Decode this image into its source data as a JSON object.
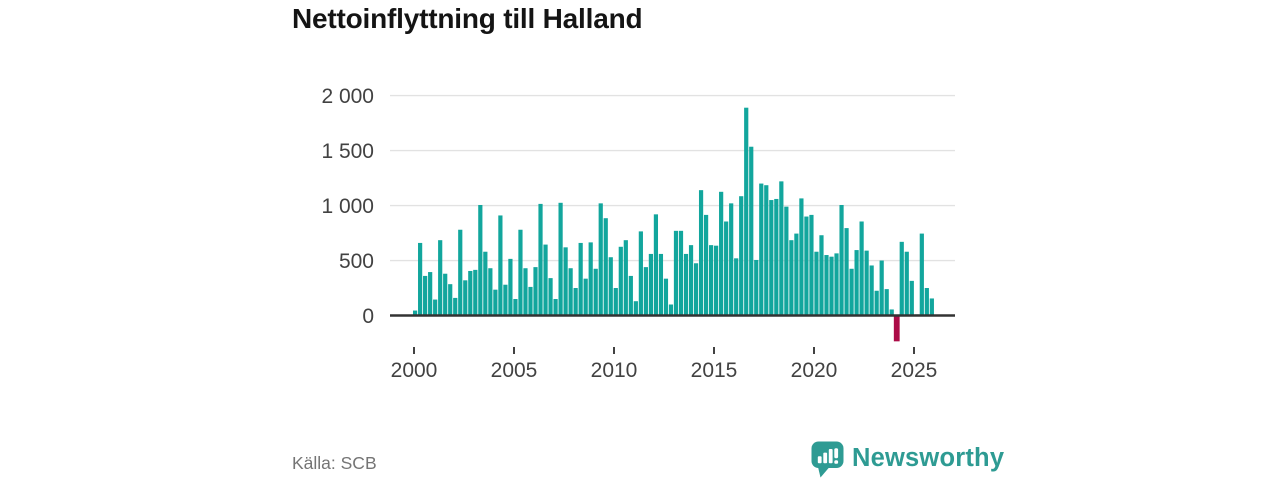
{
  "title": "Nettoinflyttning till Halland",
  "source": "Källa: SCB",
  "brand": {
    "name": "Newsworthy"
  },
  "colors": {
    "bar": "#12a69d",
    "highlight": "#ac0c47",
    "title": "#141414",
    "axis_text": "#424242",
    "grid": "#e2e2e2",
    "zero_line": "#333333",
    "source_text": "#757575",
    "logo": "#2e9b93"
  },
  "chart_data": {
    "type": "bar",
    "title": "Nettoinflyttning till Halland",
    "frequency": "quarterly",
    "grid": "horizontal",
    "legend": "none",
    "ylim": [
      -300,
      2000
    ],
    "y_ticks": [
      {
        "value": 0,
        "label": "0"
      },
      {
        "value": 500,
        "label": "500"
      },
      {
        "value": 1000,
        "label": "1 000"
      },
      {
        "value": 1500,
        "label": "1 500"
      },
      {
        "value": 2000,
        "label": "2 000"
      }
    ],
    "x_ticks": [
      {
        "year": 2000,
        "label": "2000"
      },
      {
        "year": 2005,
        "label": "2005"
      },
      {
        "year": 2010,
        "label": "2010"
      },
      {
        "year": 2015,
        "label": "2015"
      },
      {
        "year": 2020,
        "label": "2020"
      },
      {
        "year": 2025,
        "label": "2025"
      }
    ],
    "highlight": {
      "index": 96,
      "period": "2024Q1"
    },
    "categories": [
      "2000Q1",
      "2000Q2",
      "2000Q3",
      "2000Q4",
      "2001Q1",
      "2001Q2",
      "2001Q3",
      "2001Q4",
      "2002Q1",
      "2002Q2",
      "2002Q3",
      "2002Q4",
      "2003Q1",
      "2003Q2",
      "2003Q3",
      "2003Q4",
      "2004Q1",
      "2004Q2",
      "2004Q3",
      "2004Q4",
      "2005Q1",
      "2005Q2",
      "2005Q3",
      "2005Q4",
      "2006Q1",
      "2006Q2",
      "2006Q3",
      "2006Q4",
      "2007Q1",
      "2007Q2",
      "2007Q3",
      "2007Q4",
      "2008Q1",
      "2008Q2",
      "2008Q3",
      "2008Q4",
      "2009Q1",
      "2009Q2",
      "2009Q3",
      "2009Q4",
      "2010Q1",
      "2010Q2",
      "2010Q3",
      "2010Q4",
      "2011Q1",
      "2011Q2",
      "2011Q3",
      "2011Q4",
      "2012Q1",
      "2012Q2",
      "2012Q3",
      "2012Q4",
      "2013Q1",
      "2013Q2",
      "2013Q3",
      "2013Q4",
      "2014Q1",
      "2014Q2",
      "2014Q3",
      "2014Q4",
      "2015Q1",
      "2015Q2",
      "2015Q3",
      "2015Q4",
      "2016Q1",
      "2016Q2",
      "2016Q3",
      "2016Q4",
      "2017Q1",
      "2017Q2",
      "2017Q3",
      "2017Q4",
      "2018Q1",
      "2018Q2",
      "2018Q3",
      "2018Q4",
      "2019Q1",
      "2019Q2",
      "2019Q3",
      "2019Q4",
      "2020Q1",
      "2020Q2",
      "2020Q3",
      "2020Q4",
      "2021Q1",
      "2021Q2",
      "2021Q3",
      "2021Q4",
      "2022Q1",
      "2022Q2",
      "2022Q3",
      "2022Q4",
      "2023Q1",
      "2023Q2",
      "2023Q3",
      "2023Q4",
      "2024Q1",
      "2024Q2",
      "2024Q3",
      "2024Q4",
      "2025Q1",
      "2025Q2",
      "2025Q3",
      "2025Q4"
    ],
    "values": [
      45,
      660,
      360,
      395,
      145,
      685,
      380,
      285,
      160,
      780,
      320,
      405,
      415,
      1005,
      580,
      430,
      235,
      910,
      280,
      515,
      150,
      780,
      430,
      260,
      440,
      1015,
      645,
      340,
      150,
      1025,
      620,
      430,
      250,
      660,
      335,
      665,
      425,
      1020,
      885,
      530,
      250,
      625,
      685,
      360,
      130,
      765,
      440,
      560,
      920,
      560,
      335,
      100,
      770,
      770,
      560,
      640,
      475,
      1140,
      915,
      640,
      635,
      1125,
      855,
      1020,
      520,
      1085,
      1890,
      1535,
      505,
      1200,
      1185,
      1050,
      1060,
      1220,
      990,
      685,
      745,
      1065,
      900,
      915,
      580,
      730,
      550,
      535,
      565,
      1005,
      795,
      425,
      595,
      855,
      590,
      455,
      225,
      500,
      240,
      55,
      -235,
      670,
      580,
      315,
      10,
      745,
      250,
      155
    ]
  }
}
